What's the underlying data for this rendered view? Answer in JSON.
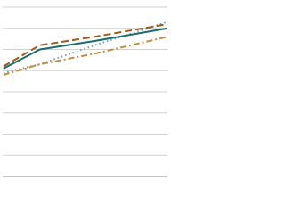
{
  "chart_data": {
    "type": "line",
    "x": [
      0,
      1,
      2.5,
      4.5
    ],
    "xlim": [
      -0.02,
      4.5
    ],
    "ylim": [
      0,
      8
    ],
    "yticks": [
      0,
      1,
      2,
      3,
      4,
      5,
      6,
      7,
      8
    ],
    "grid": true,
    "series": [
      {
        "color": "#7b9cba",
        "dash": "1.5,3",
        "values": [
          4.9,
          5.3,
          6.2,
          7.3
        ]
      },
      {
        "color": "#c28c44",
        "dash": "7,3,2,3",
        "values": [
          4.8,
          5.3,
          5.8,
          6.6
        ]
      },
      {
        "color": "#9b5a1e",
        "dash": "8,4",
        "values": [
          5.2,
          6.2,
          6.6,
          7.2
        ]
      },
      {
        "color": "#1b6a6c",
        "dash": "none",
        "values": [
          5.1,
          6.0,
          6.4,
          7.0
        ]
      }
    ]
  }
}
